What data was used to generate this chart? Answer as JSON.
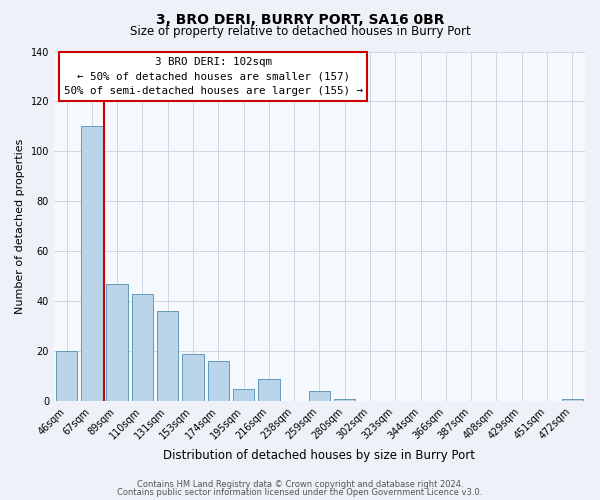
{
  "title": "3, BRO DERI, BURRY PORT, SA16 0BR",
  "subtitle": "Size of property relative to detached houses in Burry Port",
  "xlabel": "Distribution of detached houses by size in Burry Port",
  "ylabel": "Number of detached properties",
  "categories": [
    "46sqm",
    "67sqm",
    "89sqm",
    "110sqm",
    "131sqm",
    "153sqm",
    "174sqm",
    "195sqm",
    "216sqm",
    "238sqm",
    "259sqm",
    "280sqm",
    "302sqm",
    "323sqm",
    "344sqm",
    "366sqm",
    "387sqm",
    "408sqm",
    "429sqm",
    "451sqm",
    "472sqm"
  ],
  "values": [
    20,
    110,
    47,
    43,
    36,
    19,
    16,
    5,
    9,
    0,
    4,
    1,
    0,
    0,
    0,
    0,
    0,
    0,
    0,
    0,
    1
  ],
  "bar_color": "#bad4ea",
  "bar_edge_color": "#6699bb",
  "vline_color": "#cc0000",
  "vline_x": 1.5,
  "ylim": [
    0,
    140
  ],
  "yticks": [
    0,
    20,
    40,
    60,
    80,
    100,
    120,
    140
  ],
  "annotation_title": "3 BRO DERI: 102sqm",
  "annotation_line1": "← 50% of detached houses are smaller (157)",
  "annotation_line2": "50% of semi-detached houses are larger (155) →",
  "footer1": "Contains HM Land Registry data © Crown copyright and database right 2024.",
  "footer2": "Contains public sector information licensed under the Open Government Licence v3.0.",
  "background_color": "#eef2f8",
  "plot_background_color": "#f5f8fd",
  "grid_color": "#c8d0dc",
  "title_fontsize": 10,
  "subtitle_fontsize": 8.5,
  "ylabel_fontsize": 8,
  "xlabel_fontsize": 8.5,
  "tick_fontsize": 7,
  "annot_fontsize": 7.8,
  "footer_fontsize": 6
}
